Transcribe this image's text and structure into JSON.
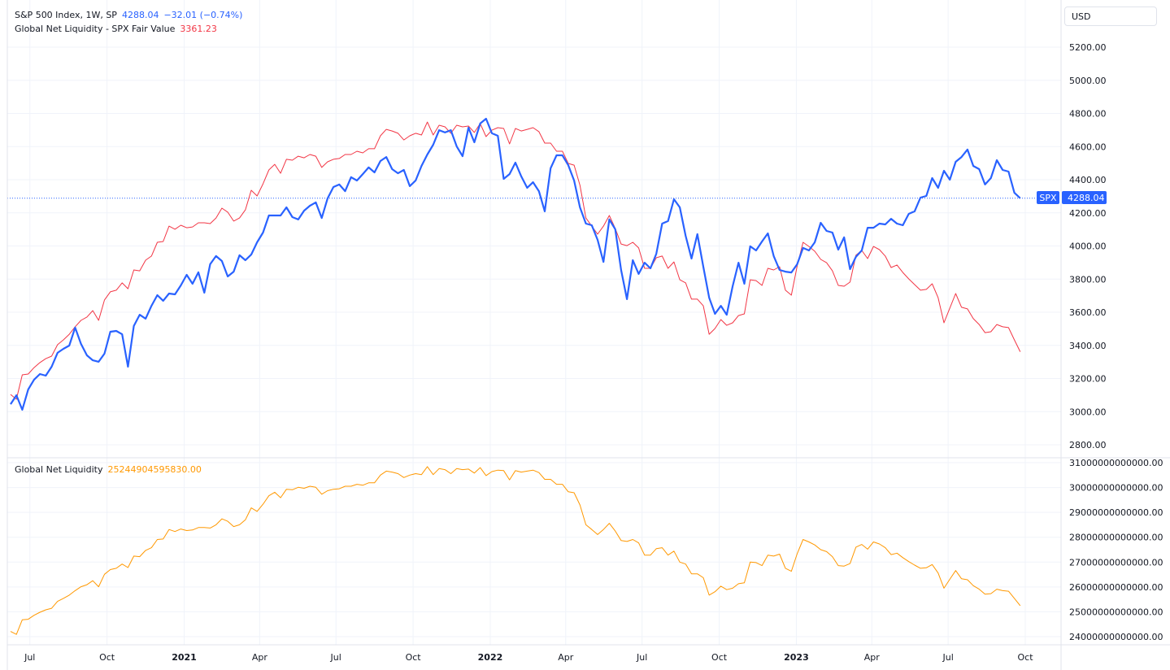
{
  "legend": {
    "spx": {
      "title": "S&P 500 Index, 1W, SP",
      "value": "4288.04",
      "change": "−32.01 (−0.74%)"
    },
    "fair_value": {
      "title": "Global Net Liquidity - SPX Fair Value",
      "value": "3361.23"
    },
    "liquidity": {
      "title": "Global Net Liquidity",
      "value": "25244904595830.00"
    }
  },
  "currency_button": "USD",
  "price_tag": {
    "symbol": "SPX",
    "value": "4288.04"
  },
  "colors": {
    "spx": "#2962ff",
    "fair_value": "#f23645",
    "liquidity": "#ff9800",
    "grid": "#f0f3fa",
    "text": "#131722"
  },
  "chart_data": [
    {
      "type": "line",
      "pane": "top",
      "interval": "1W",
      "ylim": [
        2700,
        5300
      ],
      "yticks": [
        "5200.00",
        "5000.00",
        "4800.00",
        "4600.00",
        "4400.00",
        "4200.00",
        "4000.00",
        "3800.00",
        "3600.00",
        "3400.00",
        "3200.00",
        "3000.00",
        "2800.00"
      ],
      "grid": true,
      "current_price_line": 4288.04,
      "series": [
        {
          "name": "S&P 500 Index, 1W, SP",
          "values": [
            3045,
            3099,
            3011,
            3134,
            3193,
            3227,
            3217,
            3271,
            3355,
            3379,
            3399,
            3507,
            3409,
            3340,
            3310,
            3301,
            3350,
            3482,
            3487,
            3467,
            3271,
            3517,
            3585,
            3561,
            3639,
            3703,
            3669,
            3713,
            3708,
            3762,
            3826,
            3772,
            3841,
            3718,
            3890,
            3939,
            3909,
            3816,
            3845,
            3944,
            3914,
            3948,
            4022,
            4081,
            4184,
            4184,
            4184,
            4233,
            4174,
            4160,
            4213,
            4243,
            4263,
            4169,
            4287,
            4356,
            4371,
            4331,
            4415,
            4395,
            4434,
            4474,
            4444,
            4513,
            4537,
            4464,
            4439,
            4459,
            4361,
            4395,
            4483,
            4552,
            4611,
            4699,
            4685,
            4699,
            4601,
            4542,
            4714,
            4626,
            4739,
            4768,
            4680,
            4665,
            4405,
            4434,
            4503,
            4420,
            4351,
            4385,
            4331,
            4209,
            4469,
            4547,
            4547,
            4488,
            4395,
            4233,
            4135,
            4125,
            4037,
            3904,
            4160,
            4101,
            3855,
            3679,
            3914,
            3831,
            3899,
            3865,
            3953,
            4135,
            4150,
            4282,
            4233,
            4061,
            3924,
            4071,
            3875,
            3688,
            3590,
            3639,
            3585,
            3757,
            3899,
            3772,
            3998,
            3973,
            4027,
            4076,
            3939,
            3855,
            3845,
            3840,
            3890,
            3988,
            3973,
            4022,
            4140,
            4091,
            4081,
            3978,
            4052,
            3860,
            3934,
            3973,
            4110,
            4110,
            4135,
            4130,
            4164,
            4135,
            4125,
            4194,
            4209,
            4292,
            4302,
            4410,
            4351,
            4454,
            4400,
            4508,
            4537,
            4582,
            4483,
            4464,
            4371,
            4410,
            4518,
            4459,
            4449,
            4321,
            4288.04
          ]
        },
        {
          "name": "Global Net Liquidity - SPX Fair Value",
          "values": [
            3104,
            3075,
            3222,
            3227,
            3266,
            3296,
            3320,
            3335,
            3404,
            3433,
            3467,
            3512,
            3551,
            3571,
            3610,
            3551,
            3674,
            3723,
            3733,
            3777,
            3742,
            3855,
            3850,
            3914,
            3939,
            4022,
            4027,
            4120,
            4101,
            4125,
            4110,
            4115,
            4140,
            4140,
            4135,
            4169,
            4228,
            4204,
            4150,
            4169,
            4218,
            4336,
            4302,
            4375,
            4459,
            4493,
            4439,
            4523,
            4518,
            4542,
            4532,
            4552,
            4542,
            4474,
            4508,
            4523,
            4528,
            4552,
            4552,
            4572,
            4562,
            4587,
            4587,
            4665,
            4704,
            4694,
            4680,
            4640,
            4665,
            4680,
            4670,
            4748,
            4670,
            4729,
            4719,
            4680,
            4729,
            4719,
            4724,
            4685,
            4739,
            4660,
            4699,
            4714,
            4709,
            4616,
            4709,
            4694,
            4704,
            4714,
            4690,
            4621,
            4621,
            4572,
            4572,
            4498,
            4488,
            4366,
            4169,
            4120,
            4071,
            4120,
            4184,
            4106,
            4012,
            4002,
            4022,
            3988,
            3865,
            3865,
            3929,
            3939,
            3865,
            3904,
            3796,
            3777,
            3679,
            3679,
            3639,
            3467,
            3502,
            3556,
            3521,
            3536,
            3580,
            3590,
            3796,
            3791,
            3762,
            3865,
            3855,
            3875,
            3733,
            3703,
            3880,
            4022,
            3997,
            3968,
            3919,
            3899,
            3850,
            3762,
            3757,
            3782,
            3944,
            3973,
            3924,
            3997,
            3978,
            3939,
            3870,
            3885,
            3840,
            3801,
            3767,
            3733,
            3738,
            3772,
            3688,
            3536,
            3625,
            3713,
            3630,
            3620,
            3561,
            3526,
            3477,
            3482,
            3526,
            3512,
            3507,
            3433,
            3361.23
          ]
        }
      ]
    },
    {
      "type": "line",
      "pane": "bottom",
      "interval": "1W",
      "ylim": [
        23800000000000.0,
        31200000000000.0
      ],
      "yticks": [
        "31000000000000.00",
        "30000000000000.00",
        "29000000000000.00",
        "28000000000000.00",
        "27000000000000.00",
        "26000000000000.00",
        "25000000000000.00",
        "24000000000000.00"
      ],
      "grid": true,
      "series": [
        {
          "name": "Global Net Liquidity",
          "values": [
            24210000000000.0,
            24090000000000.0,
            24680000000000.0,
            24700000000000.0,
            24860000000000.0,
            24980000000000.0,
            25080000000000.0,
            25140000000000.0,
            25420000000000.0,
            25540000000000.0,
            25670000000000.0,
            25850000000000.0,
            26010000000000.0,
            26090000000000.0,
            26250000000000.0,
            26010000000000.0,
            26510000000000.0,
            26700000000000.0,
            26750000000000.0,
            26920000000000.0,
            26780000000000.0,
            27240000000000.0,
            27220000000000.0,
            27470000000000.0,
            27580000000000.0,
            27910000000000.0,
            27930000000000.0,
            28310000000000.0,
            28230000000000.0,
            28330000000000.0,
            28270000000000.0,
            28290000000000.0,
            28390000000000.0,
            28390000000000.0,
            28370000000000.0,
            28500000000000.0,
            28740000000000.0,
            28640000000000.0,
            28430000000000.0,
            28500000000000.0,
            28700000000000.0,
            29180000000000.0,
            29040000000000.0,
            29330000000000.0,
            29670000000000.0,
            29810000000000.0,
            29590000000000.0,
            29930000000000.0,
            29910000000000.0,
            30010000000000.0,
            29970000000000.0,
            30050000000000.0,
            30010000000000.0,
            29730000000000.0,
            29870000000000.0,
            29930000000000.0,
            29950000000000.0,
            30050000000000.0,
            30050000000000.0,
            30130000000000.0,
            30090000000000.0,
            30190000000000.0,
            30190000000000.0,
            30500000000000.0,
            30660000000000.0,
            30620000000000.0,
            30560000000000.0,
            30400000000000.0,
            30500000000000.0,
            30560000000000.0,
            30520000000000.0,
            30840000000000.0,
            30520000000000.0,
            30760000000000.0,
            30720000000000.0,
            30560000000000.0,
            30760000000000.0,
            30720000000000.0,
            30740000000000.0,
            30580000000000.0,
            30800000000000.0,
            30480000000000.0,
            30640000000000.0,
            30700000000000.0,
            30680000000000.0,
            30310000000000.0,
            30680000000000.0,
            30620000000000.0,
            30660000000000.0,
            30700000000000.0,
            30600000000000.0,
            30330000000000.0,
            30330000000000.0,
            30130000000000.0,
            30130000000000.0,
            29830000000000.0,
            29790000000000.0,
            29300000000000.0,
            28500000000000.0,
            28310000000000.0,
            28110000000000.0,
            28310000000000.0,
            28560000000000.0,
            28250000000000.0,
            27870000000000.0,
            27830000000000.0,
            27910000000000.0,
            27770000000000.0,
            27280000000000.0,
            27280000000000.0,
            27540000000000.0,
            27580000000000.0,
            27280000000000.0,
            27440000000000.0,
            27000000000000.0,
            26920000000000.0,
            26530000000000.0,
            26530000000000.0,
            26370000000000.0,
            25670000000000.0,
            25810000000000.0,
            26030000000000.0,
            25890000000000.0,
            25950000000000.0,
            26130000000000.0,
            26170000000000.0,
            27000000000000.0,
            26980000000000.0,
            26860000000000.0,
            27280000000000.0,
            27240000000000.0,
            27320000000000.0,
            26750000000000.0,
            26630000000000.0,
            27340000000000.0,
            27910000000000.0,
            27810000000000.0,
            27690000000000.0,
            27500000000000.0,
            27420000000000.0,
            27220000000000.0,
            26860000000000.0,
            26840000000000.0,
            26940000000000.0,
            27600000000000.0,
            27710000000000.0,
            27520000000000.0,
            27810000000000.0,
            27730000000000.0,
            27580000000000.0,
            27300000000000.0,
            27360000000000.0,
            27180000000000.0,
            27020000000000.0,
            26880000000000.0,
            26750000000000.0,
            26770000000000.0,
            26900000000000.0,
            26560000000000.0,
            25950000000000.0,
            26310000000000.0,
            26660000000000.0,
            26330000000000.0,
            26290000000000.0,
            26050000000000.0,
            25910000000000.0,
            25710000000000.0,
            25730000000000.0,
            25910000000000.0,
            25850000000000.0,
            25830000000000.0,
            25540000000000.0,
            25244904595830.0
          ]
        }
      ]
    }
  ],
  "x": [
    "2020-06-08",
    "2020-06-15",
    "2020-06-22",
    "2020-06-29",
    "2020-07-06",
    "2020-07-13",
    "2020-07-20",
    "2020-07-27",
    "2020-08-03",
    "2020-08-10",
    "2020-08-17",
    "2020-08-24",
    "2020-08-31",
    "2020-09-07",
    "2020-09-14",
    "2020-09-21",
    "2020-09-28",
    "2020-10-05",
    "2020-10-12",
    "2020-10-19",
    "2020-10-26",
    "2020-11-02",
    "2020-11-09",
    "2020-11-16",
    "2020-11-23",
    "2020-11-30",
    "2020-12-07",
    "2020-12-14",
    "2020-12-21",
    "2020-12-28",
    "2021-01-04",
    "2021-01-11",
    "2021-01-18",
    "2021-01-25",
    "2021-02-01",
    "2021-02-08",
    "2021-02-15",
    "2021-02-22",
    "2021-03-01",
    "2021-03-08",
    "2021-03-15",
    "2021-03-22",
    "2021-03-29",
    "2021-04-05",
    "2021-04-12",
    "2021-04-19",
    "2021-04-26",
    "2021-05-03",
    "2021-05-10",
    "2021-05-17",
    "2021-05-24",
    "2021-05-31",
    "2021-06-07",
    "2021-06-14",
    "2021-06-21",
    "2021-06-28",
    "2021-07-05",
    "2021-07-12",
    "2021-07-19",
    "2021-07-26",
    "2021-08-02",
    "2021-08-09",
    "2021-08-16",
    "2021-08-23",
    "2021-08-30",
    "2021-09-06",
    "2021-09-13",
    "2021-09-20",
    "2021-09-27",
    "2021-10-04",
    "2021-10-11",
    "2021-10-18",
    "2021-10-25",
    "2021-11-01",
    "2021-11-08",
    "2021-11-15",
    "2021-11-22",
    "2021-11-29",
    "2021-12-06",
    "2021-12-13",
    "2021-12-20",
    "2021-12-27",
    "2022-01-03",
    "2022-01-10",
    "2022-01-17",
    "2022-01-24",
    "2022-01-31",
    "2022-02-07",
    "2022-02-14",
    "2022-02-21",
    "2022-02-28",
    "2022-03-07",
    "2022-03-14",
    "2022-03-21",
    "2022-03-28",
    "2022-04-04",
    "2022-04-11",
    "2022-04-18",
    "2022-04-25",
    "2022-05-02",
    "2022-05-09",
    "2022-05-16",
    "2022-05-23",
    "2022-05-30",
    "2022-06-06",
    "2022-06-13",
    "2022-06-20",
    "2022-06-27",
    "2022-07-04",
    "2022-07-11",
    "2022-07-18",
    "2022-07-25",
    "2022-08-01",
    "2022-08-08",
    "2022-08-15",
    "2022-08-22",
    "2022-08-29",
    "2022-09-05",
    "2022-09-12",
    "2022-09-19",
    "2022-09-26",
    "2022-10-03",
    "2022-10-10",
    "2022-10-17",
    "2022-10-24",
    "2022-10-31",
    "2022-11-07",
    "2022-11-14",
    "2022-11-21",
    "2022-11-28",
    "2022-12-05",
    "2022-12-12",
    "2022-12-19",
    "2022-12-26",
    "2023-01-02",
    "2023-01-09",
    "2023-01-16",
    "2023-01-23",
    "2023-01-30",
    "2023-02-06",
    "2023-02-13",
    "2023-02-20",
    "2023-02-27",
    "2023-03-06",
    "2023-03-13",
    "2023-03-20",
    "2023-03-27",
    "2023-04-03",
    "2023-04-10",
    "2023-04-17",
    "2023-04-24",
    "2023-05-01",
    "2023-05-08",
    "2023-05-15",
    "2023-05-22",
    "2023-05-29",
    "2023-06-05",
    "2023-06-12",
    "2023-06-19",
    "2023-06-26",
    "2023-07-03",
    "2023-07-10",
    "2023-07-17",
    "2023-07-24",
    "2023-07-31",
    "2023-08-07",
    "2023-08-14",
    "2023-08-21",
    "2023-08-28",
    "2023-09-04",
    "2023-09-11",
    "2023-09-18",
    "2023-09-25"
  ],
  "time_axis": [
    {
      "label": "Jul",
      "date": "2020-07-01",
      "bold": false
    },
    {
      "label": "Oct",
      "date": "2020-10-01",
      "bold": false
    },
    {
      "label": "2021",
      "date": "2021-01-01",
      "bold": true
    },
    {
      "label": "Apr",
      "date": "2021-04-01",
      "bold": false
    },
    {
      "label": "Jul",
      "date": "2021-07-01",
      "bold": false
    },
    {
      "label": "Oct",
      "date": "2021-10-01",
      "bold": false
    },
    {
      "label": "2022",
      "date": "2022-01-01",
      "bold": true
    },
    {
      "label": "Apr",
      "date": "2022-04-01",
      "bold": false
    },
    {
      "label": "Jul",
      "date": "2022-07-01",
      "bold": false
    },
    {
      "label": "Oct",
      "date": "2022-10-01",
      "bold": false
    },
    {
      "label": "2023",
      "date": "2023-01-01",
      "bold": true
    },
    {
      "label": "Apr",
      "date": "2023-04-01",
      "bold": false
    },
    {
      "label": "Jul",
      "date": "2023-07-01",
      "bold": false
    },
    {
      "label": "Oct",
      "date": "2023-10-01",
      "bold": false
    }
  ]
}
